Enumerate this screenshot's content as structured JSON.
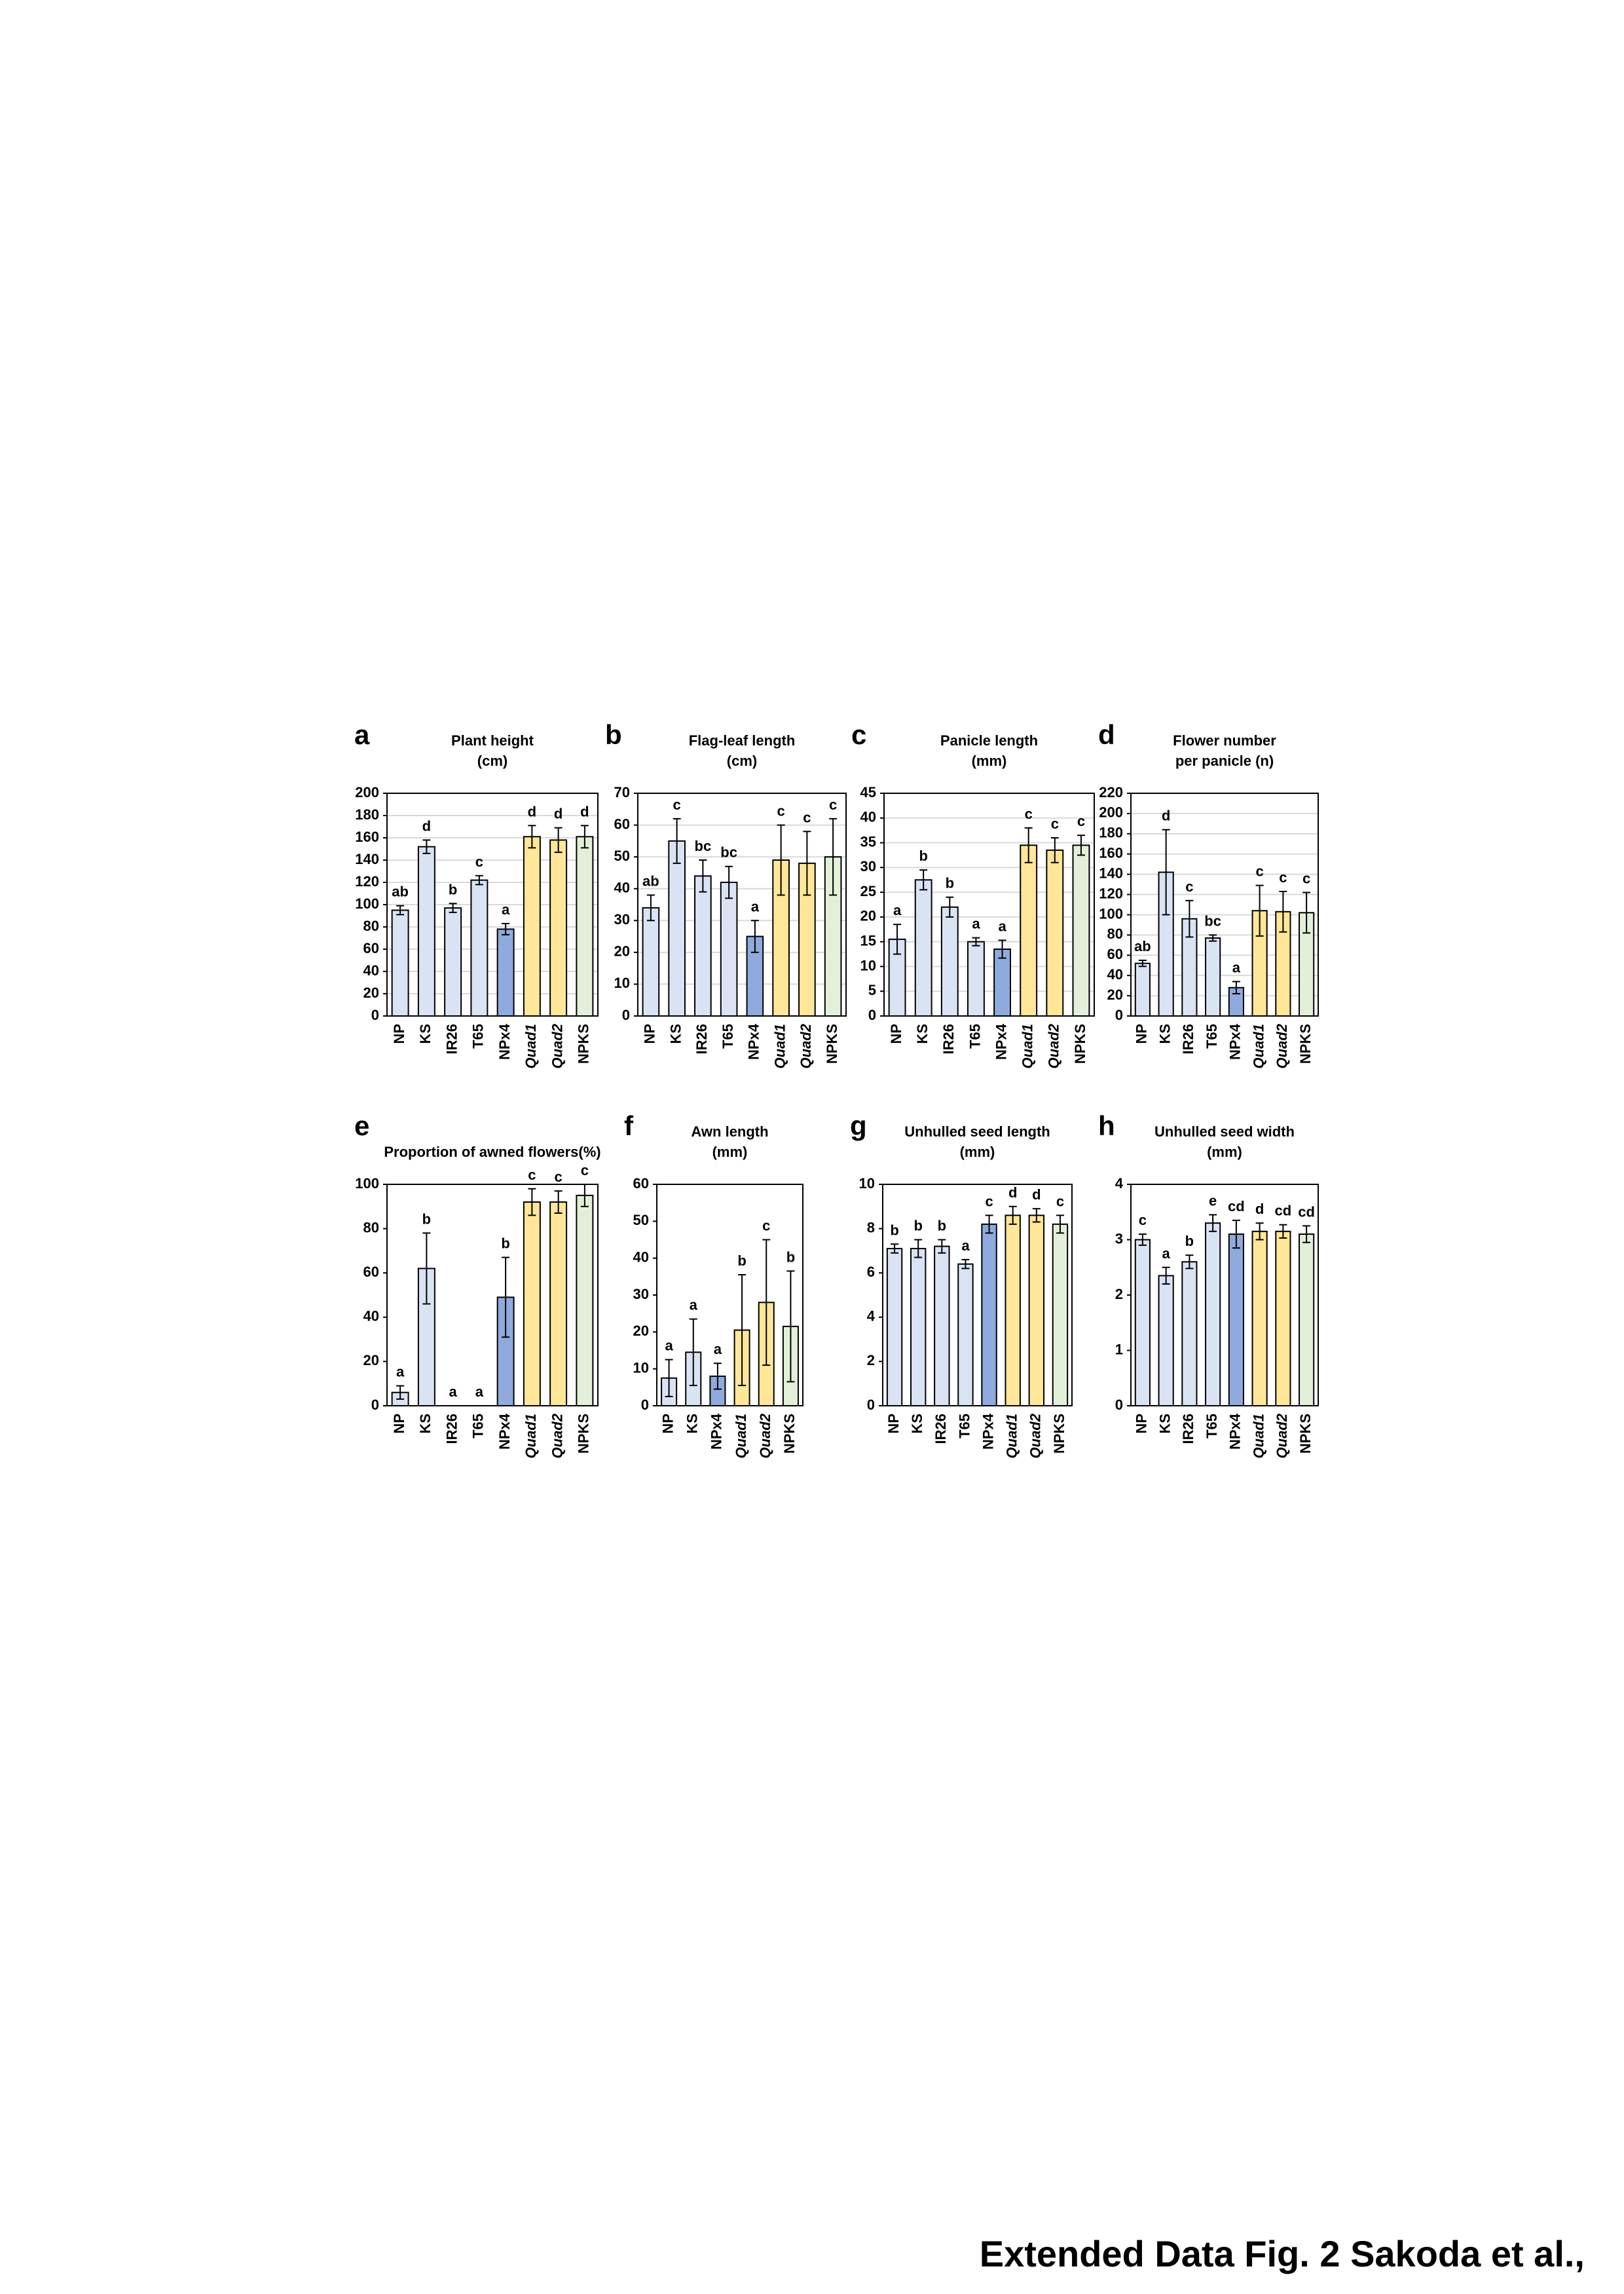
{
  "chart_data": [
    {
      "type": "bar",
      "panel": "a",
      "title": [
        "Plant height",
        "(cm)"
      ],
      "categories": [
        "NP",
        "KS",
        "IR26",
        "T65",
        "NPx4",
        "Quad1",
        "Quad2",
        "NPKS"
      ],
      "category_style": [
        "normal",
        "normal",
        "normal",
        "normal",
        "normal",
        "italic",
        "italic",
        "normal"
      ],
      "values": [
        95,
        152,
        97,
        122,
        78,
        161,
        158,
        161
      ],
      "errors": [
        4,
        6,
        4,
        4,
        5,
        10,
        11,
        10
      ],
      "annotations": [
        "ab",
        "d",
        "b",
        "c",
        "a",
        "d",
        "d",
        "d"
      ],
      "colors": [
        "#dae3f3",
        "#dae3f3",
        "#dae3f3",
        "#dae3f3",
        "#8faadc",
        "#ffe699",
        "#ffe699",
        "#e2f0d9"
      ],
      "ylim": [
        0,
        200
      ],
      "yticks": [
        0,
        20,
        40,
        60,
        80,
        100,
        120,
        140,
        160,
        180,
        200
      ],
      "grid": true
    },
    {
      "type": "bar",
      "panel": "b",
      "title": [
        "Flag-leaf length",
        "(cm)"
      ],
      "categories": [
        "NP",
        "KS",
        "IR26",
        "T65",
        "NPx4",
        "Quad1",
        "Quad2",
        "NPKS"
      ],
      "category_style": [
        "normal",
        "normal",
        "normal",
        "normal",
        "normal",
        "italic",
        "italic",
        "normal"
      ],
      "values": [
        34,
        55,
        44,
        42,
        25,
        49,
        48,
        50
      ],
      "errors": [
        4,
        7,
        5,
        5,
        5,
        11,
        10,
        12
      ],
      "annotations": [
        "ab",
        "c",
        "bc",
        "bc",
        "a",
        "c",
        "c",
        "c"
      ],
      "colors": [
        "#dae3f3",
        "#dae3f3",
        "#dae3f3",
        "#dae3f3",
        "#8faadc",
        "#ffe699",
        "#ffe699",
        "#e2f0d9"
      ],
      "ylim": [
        0,
        70
      ],
      "yticks": [
        0,
        10,
        20,
        30,
        40,
        50,
        60,
        70
      ],
      "grid": true
    },
    {
      "type": "bar",
      "panel": "c",
      "title": [
        "Panicle length",
        "(mm)"
      ],
      "categories": [
        "NP",
        "KS",
        "IR26",
        "T65",
        "NPx4",
        "Quad1",
        "Quad2",
        "NPKS"
      ],
      "category_style": [
        "normal",
        "normal",
        "normal",
        "normal",
        "normal",
        "italic",
        "italic",
        "normal"
      ],
      "values": [
        15.5,
        27.5,
        22,
        15,
        13.5,
        34.5,
        33.5,
        34.5
      ],
      "errors": [
        3,
        2,
        2,
        0.8,
        1.8,
        3.5,
        2.5,
        2
      ],
      "annotations": [
        "a",
        "b",
        "b",
        "a",
        "a",
        "c",
        "c",
        "c"
      ],
      "colors": [
        "#dae3f3",
        "#dae3f3",
        "#dae3f3",
        "#dae3f3",
        "#8faadc",
        "#ffe699",
        "#ffe699",
        "#e2f0d9"
      ],
      "ylim": [
        0,
        45
      ],
      "yticks": [
        0,
        5,
        10,
        15,
        20,
        25,
        30,
        35,
        40,
        45
      ],
      "grid": true
    },
    {
      "type": "bar",
      "panel": "d",
      "title": [
        "Flower number",
        "per panicle (n)"
      ],
      "categories": [
        "NP",
        "KS",
        "IR26",
        "T65",
        "NPx4",
        "Quad1",
        "Quad2",
        "NPKS"
      ],
      "category_style": [
        "normal",
        "normal",
        "normal",
        "normal",
        "normal",
        "italic",
        "italic",
        "normal"
      ],
      "values": [
        52,
        142,
        96,
        77,
        28,
        104,
        103,
        102
      ],
      "errors": [
        3,
        42,
        18,
        3,
        6,
        25,
        20,
        20
      ],
      "annotations": [
        "ab",
        "d",
        "c",
        "bc",
        "a",
        "c",
        "c",
        "c"
      ],
      "colors": [
        "#dae3f3",
        "#dae3f3",
        "#dae3f3",
        "#dae3f3",
        "#8faadc",
        "#ffe699",
        "#ffe699",
        "#e2f0d9"
      ],
      "ylim": [
        0,
        220
      ],
      "yticks": [
        0,
        20,
        40,
        60,
        80,
        100,
        120,
        140,
        160,
        180,
        200,
        220
      ],
      "grid": true
    },
    {
      "type": "bar",
      "panel": "e",
      "title": [
        "Proportion of awned flowers(%)"
      ],
      "categories": [
        "NP",
        "KS",
        "IR26",
        "T65",
        "NPx4",
        "Quad1",
        "Quad2",
        "NPKS"
      ],
      "category_style": [
        "normal",
        "normal",
        "normal",
        "normal",
        "normal",
        "italic",
        "italic",
        "normal"
      ],
      "values": [
        6,
        62,
        0,
        0,
        49,
        92,
        92,
        95
      ],
      "errors": [
        3,
        16,
        null,
        null,
        18,
        6,
        5,
        5
      ],
      "annotations": [
        "a",
        "b",
        "a",
        "a",
        "b",
        "c",
        "c",
        "c"
      ],
      "colors": [
        "#dae3f3",
        "#dae3f3",
        "#dae3f3",
        "#dae3f3",
        "#8faadc",
        "#ffe699",
        "#ffe699",
        "#e2f0d9"
      ],
      "ylim": [
        0,
        100
      ],
      "yticks": [
        0,
        20,
        40,
        60,
        80,
        100
      ],
      "grid": false
    },
    {
      "type": "bar",
      "panel": "f",
      "title": [
        "Awn length",
        "(mm)"
      ],
      "categories": [
        "NP",
        "KS",
        "NPx4",
        "Quad1",
        "Quad2",
        "NPKS"
      ],
      "category_style": [
        "normal",
        "normal",
        "normal",
        "italic",
        "italic",
        "normal"
      ],
      "values": [
        7.5,
        14.5,
        8,
        20.5,
        28,
        21.5
      ],
      "errors": [
        5,
        9,
        3.5,
        15,
        17,
        15
      ],
      "annotations": [
        "a",
        "a",
        "a",
        "b",
        "c",
        "b"
      ],
      "colors": [
        "#dae3f3",
        "#dae3f3",
        "#8faadc",
        "#ffe699",
        "#ffe699",
        "#e2f0d9"
      ],
      "ylim": [
        0,
        60
      ],
      "yticks": [
        0,
        10,
        20,
        30,
        40,
        50,
        60
      ],
      "grid": false
    },
    {
      "type": "bar",
      "panel": "g",
      "title": [
        "Unhulled seed length",
        "(mm)"
      ],
      "categories": [
        "NP",
        "KS",
        "IR26",
        "T65",
        "NPx4",
        "Quad1",
        "Quad2",
        "NPKS"
      ],
      "category_style": [
        "normal",
        "normal",
        "normal",
        "normal",
        "normal",
        "italic",
        "italic",
        "normal"
      ],
      "values": [
        7.1,
        7.1,
        7.2,
        6.4,
        8.2,
        8.6,
        8.6,
        8.2
      ],
      "errors": [
        0.2,
        0.4,
        0.3,
        0.2,
        0.4,
        0.4,
        0.3,
        0.4
      ],
      "annotations": [
        "b",
        "b",
        "b",
        "a",
        "c",
        "d",
        "d",
        "c"
      ],
      "colors": [
        "#dae3f3",
        "#dae3f3",
        "#dae3f3",
        "#dae3f3",
        "#8faadc",
        "#ffe699",
        "#ffe699",
        "#e2f0d9"
      ],
      "ylim": [
        0,
        10
      ],
      "yticks": [
        0,
        2,
        4,
        6,
        8,
        10
      ],
      "grid": false
    },
    {
      "type": "bar",
      "panel": "h",
      "title": [
        "Unhulled seed width",
        "(mm)"
      ],
      "categories": [
        "NP",
        "KS",
        "IR26",
        "T65",
        "NPx4",
        "Quad1",
        "Quad2",
        "NPKS"
      ],
      "category_style": [
        "normal",
        "normal",
        "normal",
        "normal",
        "normal",
        "italic",
        "italic",
        "normal"
      ],
      "values": [
        3.0,
        2.35,
        2.6,
        3.3,
        3.1,
        3.15,
        3.15,
        3.1
      ],
      "errors": [
        0.1,
        0.15,
        0.12,
        0.15,
        0.25,
        0.15,
        0.12,
        0.15
      ],
      "annotations": [
        "c",
        "a",
        "b",
        "e",
        "cd",
        "d",
        "cd",
        "cd"
      ],
      "colors": [
        "#dae3f3",
        "#dae3f3",
        "#dae3f3",
        "#dae3f3",
        "#8faadc",
        "#ffe699",
        "#ffe699",
        "#e2f0d9"
      ],
      "ylim": [
        0,
        4
      ],
      "yticks": [
        0,
        1,
        2,
        3,
        4
      ],
      "grid": false
    }
  ],
  "footer": "Extended Data Fig. 2  Sakoda et al.,"
}
